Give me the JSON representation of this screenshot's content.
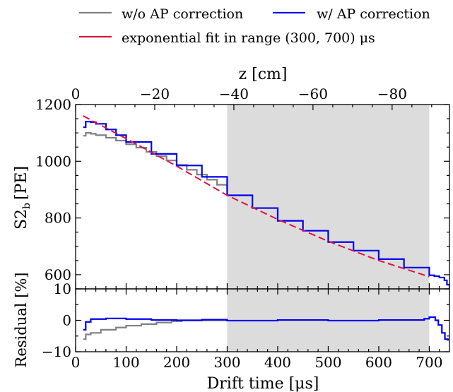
{
  "chart_data": [
    {
      "type": "line",
      "panel": "main",
      "ylabel_main": "S2",
      "ylabel_sub": "b",
      "ylabel_unit": "[PE]",
      "xlim": [
        0,
        740
      ],
      "ylim": [
        550,
        1200
      ],
      "yticks": [
        600,
        800,
        1000,
        1200
      ],
      "top_axis": {
        "label": "z [cm]",
        "ticks": [
          0,
          -20,
          -40,
          -60,
          -80
        ],
        "tick_labels": [
          "0",
          "−20",
          "−40",
          "−60",
          "−80"
        ],
        "cm_per_us": -0.1277
      },
      "shaded_x_range": [
        300,
        700
      ],
      "legend": [
        {
          "label": "w/o AP correction",
          "color": "#808080"
        },
        {
          "label": "w/ AP correction",
          "color": "#0000ee"
        },
        {
          "label": "exponential fit in range (300, 700) μs",
          "color": "#dc143c"
        }
      ],
      "series": [
        {
          "name": "w/o AP correction",
          "color": "#808080",
          "step": true,
          "x": [
            15,
            20,
            30,
            40,
            60,
            80,
            100,
            120,
            140,
            160,
            180,
            200,
            220,
            240,
            260,
            280,
            300
          ],
          "y": [
            1090,
            1100,
            1097,
            1092,
            1083,
            1073,
            1060,
            1048,
            1033,
            1018,
            1003,
            987,
            970,
            953,
            935,
            917,
            900
          ]
        },
        {
          "name": "w/ AP correction",
          "color": "#0000ee",
          "step": true,
          "x": [
            15,
            20,
            30,
            40,
            60,
            80,
            100,
            150,
            200,
            250,
            300,
            350,
            400,
            450,
            500,
            550,
            600,
            650,
            700,
            710,
            720,
            730,
            735,
            740
          ],
          "y": [
            1120,
            1140,
            1138,
            1132,
            1112,
            1092,
            1068,
            1026,
            985,
            945,
            880,
            835,
            790,
            755,
            715,
            685,
            655,
            625,
            598,
            595,
            590,
            580,
            565,
            548
          ]
        },
        {
          "name": "exponential fit in range (300, 700) μs",
          "color": "#dc143c",
          "step": false,
          "x": [
            15,
            100,
            200,
            300,
            400,
            500,
            600,
            700
          ],
          "y": [
            1160,
            1080,
            983,
            880,
            795,
            718,
            650,
            593
          ]
        }
      ]
    },
    {
      "type": "line",
      "panel": "residual",
      "ylabel": "Residual [%]",
      "xlabel": "Drift time [μs]",
      "xlim": [
        0,
        740
      ],
      "ylim": [
        -10,
        10
      ],
      "yticks": [
        10,
        0,
        -10
      ],
      "xticks": [
        0,
        100,
        200,
        300,
        400,
        500,
        600,
        700
      ],
      "shaded_x_range": [
        300,
        700
      ],
      "series": [
        {
          "name": "w/o AP correction",
          "color": "#808080",
          "x": [
            15,
            20,
            30,
            50,
            80,
            100,
            130,
            160,
            190,
            210,
            240,
            300
          ],
          "y": [
            -6,
            -4.5,
            -4,
            -3,
            -2.3,
            -1.7,
            -1.2,
            -0.7,
            -0.3,
            0,
            0,
            0
          ]
        },
        {
          "name": "w/ AP correction",
          "color": "#0000ee",
          "x": [
            15,
            20,
            30,
            60,
            100,
            150,
            200,
            250,
            300,
            400,
            500,
            600,
            690,
            700,
            712,
            718,
            725,
            731,
            737
          ],
          "y": [
            -3,
            -0.5,
            0.4,
            0.6,
            0.4,
            0.1,
            0,
            0.2,
            -0.1,
            0.1,
            -0.1,
            0.1,
            0.5,
            1,
            0,
            -1.5,
            -4,
            -6,
            -6.5
          ]
        }
      ]
    }
  ]
}
